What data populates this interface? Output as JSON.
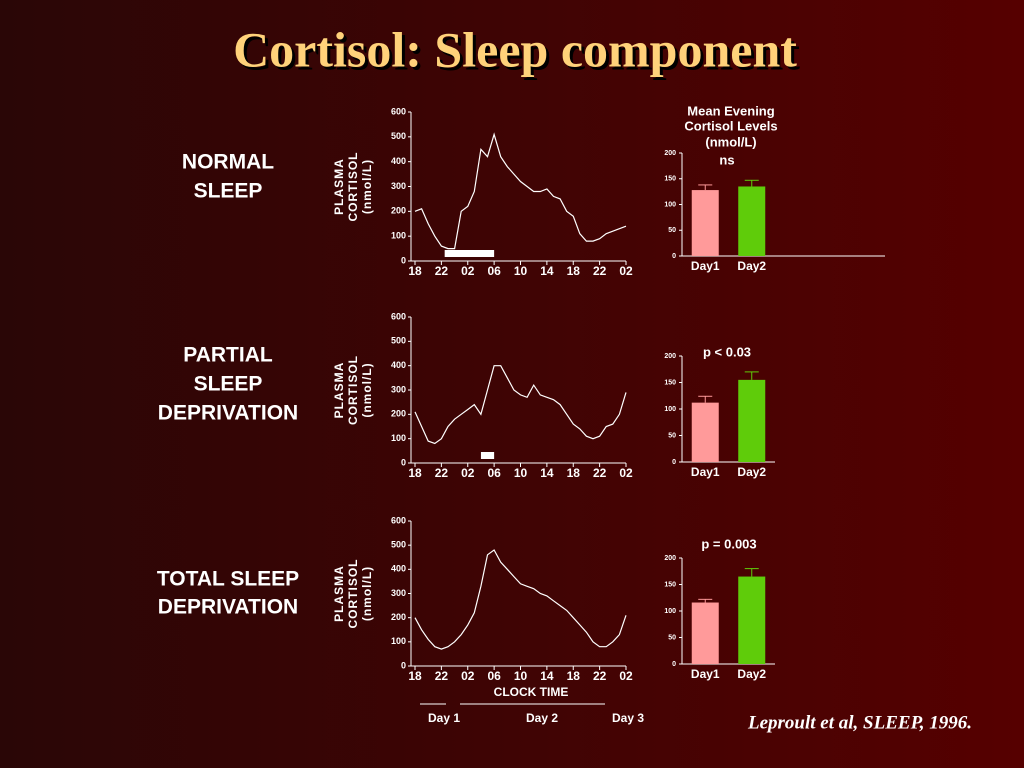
{
  "title": "Cortisol: Sleep component",
  "row_labels": [
    [
      "NORMAL",
      "SLEEP"
    ],
    [
      "PARTIAL",
      "SLEEP",
      "DEPRIVATION"
    ],
    [
      "TOTAL SLEEP",
      "DEPRIVATION"
    ]
  ],
  "x_axis_label": "CLOCK TIME",
  "day_labels": [
    "Day 1",
    "Day 2",
    "Day 3"
  ],
  "citation": "Leproult et al, SLEEP, 1996.",
  "chart_data": [
    {
      "type": "line",
      "ylabel": [
        "PLASMA",
        "CORTISOL",
        "(nmol/L)"
      ],
      "color": "#ffffff",
      "x": [
        0,
        1,
        2,
        3,
        4,
        5,
        6,
        7,
        8,
        9,
        10,
        11,
        12,
        13,
        14,
        15,
        16,
        17,
        18,
        19,
        20,
        21,
        22,
        23,
        24,
        25,
        26,
        27,
        28,
        29,
        30,
        31,
        32
      ],
      "values": [
        200,
        210,
        150,
        100,
        60,
        50,
        50,
        200,
        220,
        280,
        450,
        420,
        510,
        420,
        380,
        350,
        320,
        300,
        280,
        280,
        290,
        260,
        250,
        200,
        180,
        110,
        80,
        80,
        90,
        110,
        120,
        130,
        140
      ],
      "sleep_period": [
        4.5,
        12
      ],
      "xlim": [
        0,
        32
      ],
      "xticks": [
        {
          "value": 0,
          "label": "18"
        },
        {
          "value": 4,
          "label": "22"
        },
        {
          "value": 8,
          "label": "02"
        },
        {
          "value": 12,
          "label": "06"
        },
        {
          "value": 16,
          "label": "10"
        },
        {
          "value": 20,
          "label": "14"
        },
        {
          "value": 24,
          "label": "18"
        },
        {
          "value": 28,
          "label": "22"
        },
        {
          "value": 32,
          "label": "02"
        }
      ],
      "ylim": [
        0,
        600
      ],
      "yticks": [
        0,
        100,
        200,
        300,
        400,
        500,
        600
      ]
    },
    {
      "type": "bar",
      "title": [
        "Mean Evening",
        "Cortisol Levels",
        "(nmol/L)"
      ],
      "annotation": "ns",
      "categories": [
        "Day1",
        "Day2"
      ],
      "values": [
        128,
        135
      ],
      "errors": [
        10,
        12
      ],
      "colors": [
        "#ff9a9a",
        "#5fcc0a"
      ],
      "ylim": [
        0,
        200
      ],
      "yticks": [
        0,
        50,
        100,
        150,
        200
      ]
    },
    {
      "type": "line",
      "ylabel": [
        "PLASMA",
        "CORTISOL",
        "(nmol/L)"
      ],
      "color": "#ffffff",
      "x": [
        0,
        1,
        2,
        3,
        4,
        5,
        6,
        7,
        8,
        9,
        10,
        11,
        12,
        13,
        14,
        15,
        16,
        17,
        18,
        19,
        20,
        21,
        22,
        23,
        24,
        25,
        26,
        27,
        28,
        29,
        30,
        31,
        32
      ],
      "values": [
        210,
        150,
        90,
        80,
        100,
        150,
        180,
        200,
        220,
        240,
        200,
        300,
        400,
        400,
        350,
        300,
        280,
        270,
        320,
        280,
        270,
        260,
        240,
        200,
        160,
        140,
        110,
        100,
        110,
        150,
        160,
        200,
        290
      ],
      "sleep_period": [
        10,
        12
      ],
      "xlim": [
        0,
        32
      ],
      "xticks": [
        {
          "value": 0,
          "label": "18"
        },
        {
          "value": 4,
          "label": "22"
        },
        {
          "value": 8,
          "label": "02"
        },
        {
          "value": 12,
          "label": "06"
        },
        {
          "value": 16,
          "label": "10"
        },
        {
          "value": 20,
          "label": "14"
        },
        {
          "value": 24,
          "label": "18"
        },
        {
          "value": 28,
          "label": "22"
        },
        {
          "value": 32,
          "label": "02"
        }
      ],
      "ylim": [
        0,
        600
      ],
      "yticks": [
        0,
        100,
        200,
        300,
        400,
        500,
        600
      ]
    },
    {
      "type": "bar",
      "annotation": "p < 0.03",
      "categories": [
        "Day1",
        "Day2"
      ],
      "values": [
        112,
        155
      ],
      "errors": [
        12,
        15
      ],
      "colors": [
        "#ff9a9a",
        "#5fcc0a"
      ],
      "ylim": [
        0,
        200
      ],
      "yticks": [
        0,
        50,
        100,
        150,
        200
      ]
    },
    {
      "type": "line",
      "ylabel": [
        "PLASMA",
        "CORTISOL",
        "(nmol/L)"
      ],
      "color": "#ffffff",
      "x": [
        0,
        1,
        2,
        3,
        4,
        5,
        6,
        7,
        8,
        9,
        10,
        11,
        12,
        13,
        14,
        15,
        16,
        17,
        18,
        19,
        20,
        21,
        22,
        23,
        24,
        25,
        26,
        27,
        28,
        29,
        30,
        31,
        32
      ],
      "values": [
        200,
        150,
        110,
        80,
        70,
        80,
        100,
        130,
        170,
        220,
        330,
        460,
        480,
        430,
        400,
        370,
        340,
        330,
        320,
        300,
        290,
        270,
        250,
        230,
        200,
        170,
        140,
        100,
        80,
        80,
        100,
        130,
        210
      ],
      "xlim": [
        0,
        32
      ],
      "xticks": [
        {
          "value": 0,
          "label": "18"
        },
        {
          "value": 4,
          "label": "22"
        },
        {
          "value": 8,
          "label": "02"
        },
        {
          "value": 12,
          "label": "06"
        },
        {
          "value": 16,
          "label": "10"
        },
        {
          "value": 20,
          "label": "14"
        },
        {
          "value": 24,
          "label": "18"
        },
        {
          "value": 28,
          "label": "22"
        },
        {
          "value": 32,
          "label": "02"
        }
      ],
      "ylim": [
        0,
        600
      ],
      "yticks": [
        0,
        100,
        200,
        300,
        400,
        500,
        600
      ]
    },
    {
      "type": "bar",
      "annotation": "p = 0.003",
      "categories": [
        "Day1",
        "Day2"
      ],
      "values": [
        116,
        165
      ],
      "errors": [
        6,
        15
      ],
      "colors": [
        "#ff9a9a",
        "#5fcc0a"
      ],
      "ylim": [
        0,
        200
      ],
      "yticks": [
        0,
        50,
        100,
        150,
        200
      ]
    }
  ]
}
